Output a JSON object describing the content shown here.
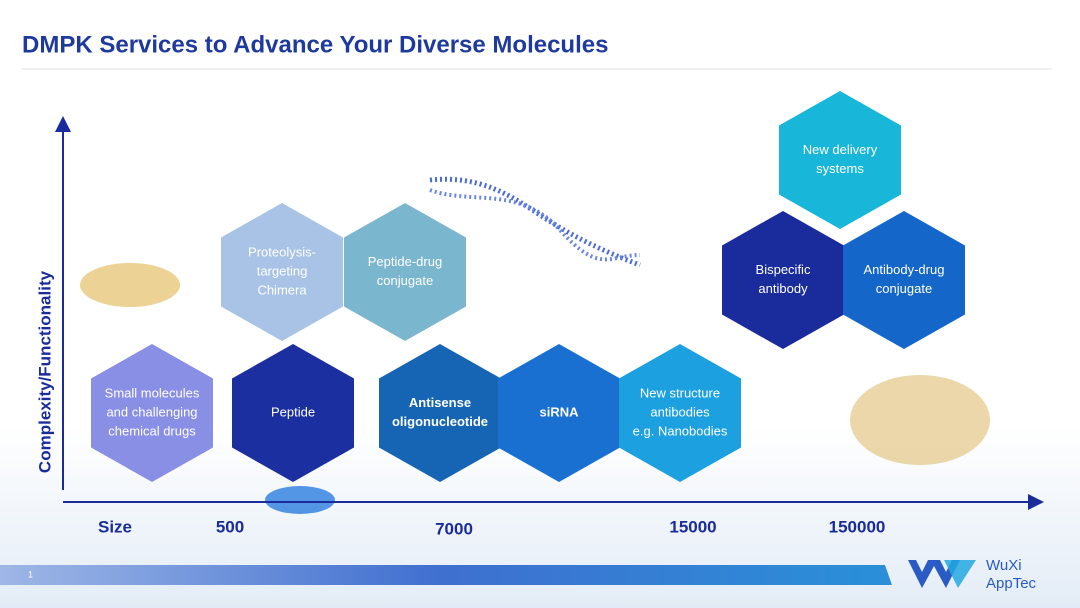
{
  "header": {
    "title": "DMPK Services to Advance Your Diverse Molecules"
  },
  "axes": {
    "y_label": "Complexity/Functionality",
    "x_label": "Size",
    "size_labels": [
      "500",
      "7000",
      "15000",
      "150000"
    ]
  },
  "nodes": [
    {
      "lines": [
        "Small molecules",
        "and challenging",
        "chemical drugs"
      ],
      "color": "#8a8fe6",
      "bold": false
    },
    {
      "lines": [
        "Peptide"
      ],
      "color": "#1b2fa0",
      "bold": false
    },
    {
      "lines": [
        "Proteolysis-",
        "targeting",
        "Chimera"
      ],
      "color": "#a8c3e6",
      "bold": false
    },
    {
      "lines": [
        "Peptide-drug",
        "conjugate"
      ],
      "color": "#7bb6cf",
      "bold": false
    },
    {
      "lines": [
        "Antisense",
        "oligonucleotide"
      ],
      "color": "#1565b4",
      "bold": true
    },
    {
      "lines": [
        "siRNA"
      ],
      "color": "#1a70d0",
      "bold": true
    },
    {
      "lines": [
        "New structure",
        "antibodies",
        "e.g. Nanobodies"
      ],
      "color": "#1ca0e0",
      "bold": false
    },
    {
      "lines": [
        "New delivery",
        "systems"
      ],
      "color": "#18b6d8",
      "bold": false
    },
    {
      "lines": [
        "Bispecific",
        "antibody"
      ],
      "color": "#1a2b9c",
      "bold": false
    },
    {
      "lines": [
        "Antibody-drug",
        "conjugate"
      ],
      "color": "#1466c8",
      "bold": false
    }
  ],
  "footer": {
    "page": "1",
    "logo": [
      "WuXi",
      "AppTec"
    ]
  }
}
